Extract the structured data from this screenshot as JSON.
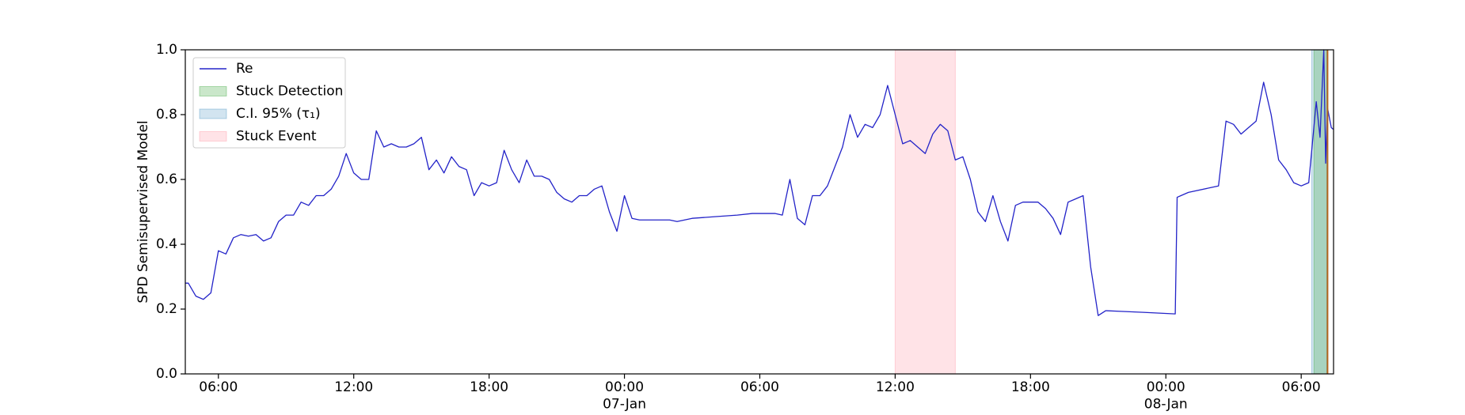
{
  "chart_data": {
    "type": "line",
    "ylabel": "SPD Semisupervised Model",
    "x": [
      "1900-01-06T04:32",
      "1900-01-06T04:40",
      "1900-01-06T05:00",
      "1900-01-06T05:20",
      "1900-01-06T05:40",
      "1900-01-06T06:00",
      "1900-01-06T06:20",
      "1900-01-06T06:40",
      "1900-01-06T07:00",
      "1900-01-06T07:20",
      "1900-01-06T07:40",
      "1900-01-06T08:00",
      "1900-01-06T08:20",
      "1900-01-06T08:40",
      "1900-01-06T09:00",
      "1900-01-06T09:20",
      "1900-01-06T09:40",
      "1900-01-06T10:00",
      "1900-01-06T10:20",
      "1900-01-06T10:40",
      "1900-01-06T11:00",
      "1900-01-06T11:20",
      "1900-01-06T11:40",
      "1900-01-06T12:00",
      "1900-01-06T12:20",
      "1900-01-06T12:40",
      "1900-01-06T13:00",
      "1900-01-06T13:20",
      "1900-01-06T13:40",
      "1900-01-06T14:00",
      "1900-01-06T14:20",
      "1900-01-06T14:40",
      "1900-01-06T15:00",
      "1900-01-06T15:20",
      "1900-01-06T15:40",
      "1900-01-06T16:00",
      "1900-01-06T16:20",
      "1900-01-06T16:40",
      "1900-01-06T17:00",
      "1900-01-06T17:20",
      "1900-01-06T17:40",
      "1900-01-06T18:00",
      "1900-01-06T18:20",
      "1900-01-06T18:40",
      "1900-01-06T19:00",
      "1900-01-06T19:20",
      "1900-01-06T19:40",
      "1900-01-06T20:00",
      "1900-01-06T20:20",
      "1900-01-06T20:40",
      "1900-01-06T21:00",
      "1900-01-06T21:20",
      "1900-01-06T21:40",
      "1900-01-06T22:00",
      "1900-01-06T22:20",
      "1900-01-06T22:40",
      "1900-01-06T23:00",
      "1900-01-06T23:20",
      "1900-01-06T23:40",
      "1900-01-07T00:00",
      "1900-01-07T00:20",
      "1900-01-07T00:40",
      "1900-01-07T01:00",
      "1900-01-07T02:00",
      "1900-01-07T02:20",
      "1900-01-07T03:00",
      "1900-01-07T04:00",
      "1900-01-07T05:00",
      "1900-01-07T05:40",
      "1900-01-07T06:40",
      "1900-01-07T07:00",
      "1900-01-07T07:20",
      "1900-01-07T07:40",
      "1900-01-07T08:00",
      "1900-01-07T08:20",
      "1900-01-07T08:40",
      "1900-01-07T09:00",
      "1900-01-07T09:20",
      "1900-01-07T09:40",
      "1900-01-07T10:00",
      "1900-01-07T10:20",
      "1900-01-07T10:40",
      "1900-01-07T11:00",
      "1900-01-07T11:20",
      "1900-01-07T11:40",
      "1900-01-07T12:00",
      "1900-01-07T12:20",
      "1900-01-07T12:40",
      "1900-01-07T13:00",
      "1900-01-07T13:20",
      "1900-01-07T13:40",
      "1900-01-07T14:00",
      "1900-01-07T14:20",
      "1900-01-07T14:40",
      "1900-01-07T15:00",
      "1900-01-07T15:20",
      "1900-01-07T15:40",
      "1900-01-07T16:00",
      "1900-01-07T16:20",
      "1900-01-07T16:40",
      "1900-01-07T17:00",
      "1900-01-07T17:20",
      "1900-01-07T17:40",
      "1900-01-07T18:00",
      "1900-01-07T18:20",
      "1900-01-07T18:40",
      "1900-01-07T19:00",
      "1900-01-07T19:20",
      "1900-01-07T19:40",
      "1900-01-07T20:00",
      "1900-01-07T20:20",
      "1900-01-07T20:40",
      "1900-01-07T21:00",
      "1900-01-07T21:20",
      "1900-01-07T22:00",
      "1900-01-07T23:00",
      "1900-01-08T00:25",
      "1900-01-08T00:30",
      "1900-01-08T00:40",
      "1900-01-08T01:00",
      "1900-01-08T02:00",
      "1900-01-08T02:20",
      "1900-01-08T02:40",
      "1900-01-08T03:00",
      "1900-01-08T03:20",
      "1900-01-08T03:40",
      "1900-01-08T04:00",
      "1900-01-08T04:20",
      "1900-01-08T04:40",
      "1900-01-08T05:00",
      "1900-01-08T05:20",
      "1900-01-08T05:40",
      "1900-01-08T06:00",
      "1900-01-08T06:20",
      "1900-01-08T06:40",
      "1900-01-08T06:50",
      "1900-01-08T07:00",
      "1900-01-08T07:05",
      "1900-01-08T07:10",
      "1900-01-08T07:20",
      "1900-01-08T07:25"
    ],
    "series": [
      {
        "name": "Re",
        "color": "#2323c8",
        "values": [
          0.28,
          0.28,
          0.24,
          0.23,
          0.25,
          0.38,
          0.37,
          0.42,
          0.43,
          0.425,
          0.43,
          0.41,
          0.42,
          0.47,
          0.49,
          0.49,
          0.53,
          0.52,
          0.55,
          0.55,
          0.57,
          0.61,
          0.68,
          0.62,
          0.6,
          0.6,
          0.75,
          0.7,
          0.71,
          0.7,
          0.7,
          0.71,
          0.73,
          0.63,
          0.66,
          0.62,
          0.67,
          0.64,
          0.63,
          0.55,
          0.59,
          0.58,
          0.59,
          0.69,
          0.63,
          0.59,
          0.66,
          0.61,
          0.61,
          0.6,
          0.56,
          0.54,
          0.53,
          0.55,
          0.55,
          0.57,
          0.58,
          0.5,
          0.44,
          0.55,
          0.48,
          0.475,
          0.475,
          0.475,
          0.47,
          0.48,
          0.485,
          0.49,
          0.495,
          0.495,
          0.49,
          0.6,
          0.48,
          0.46,
          0.55,
          0.55,
          0.58,
          0.64,
          0.7,
          0.8,
          0.73,
          0.77,
          0.76,
          0.8,
          0.89,
          0.8,
          0.71,
          0.72,
          0.7,
          0.68,
          0.74,
          0.77,
          0.75,
          0.66,
          0.67,
          0.6,
          0.5,
          0.47,
          0.55,
          0.47,
          0.41,
          0.52,
          0.53,
          0.53,
          0.53,
          0.51,
          0.48,
          0.43,
          0.53,
          0.54,
          0.55,
          0.33,
          0.18,
          0.195,
          0.193,
          0.19,
          0.185,
          0.545,
          0.55,
          0.56,
          0.575,
          0.58,
          0.78,
          0.77,
          0.74,
          0.76,
          0.78,
          0.9,
          0.8,
          0.66,
          0.63,
          0.59,
          0.58,
          0.59,
          0.84,
          0.73,
          1,
          0.65,
          0.82,
          0.76,
          0.755
        ]
      }
    ],
    "spans": [
      {
        "name": "Stuck Detection",
        "color": "#2ca02c",
        "alpha": 0.25,
        "start": "1900-01-08T06:34",
        "end": "1900-01-08T07:10"
      },
      {
        "name": "C.I. 95% (τ₁)",
        "color": "#1f77b4",
        "alpha": 0.2,
        "start": "1900-01-08T06:28",
        "end": "1900-01-08T07:08"
      },
      {
        "name": "Stuck Event",
        "color": "#ff8090",
        "alpha": 0.22,
        "start": "1900-01-07T12:00",
        "end": "1900-01-07T14:40"
      }
    ],
    "vlines": [
      {
        "x": "1900-01-08T07:10",
        "color": "#b5651d"
      }
    ],
    "xlim": [
      "1900-01-06T04:32",
      "1900-01-08T07:26"
    ],
    "xticks": [
      {
        "value": "1900-01-06T06:00",
        "label": "06:00"
      },
      {
        "value": "1900-01-06T12:00",
        "label": "12:00"
      },
      {
        "value": "1900-01-06T18:00",
        "label": "18:00"
      },
      {
        "value": "1900-01-07T00:00",
        "label": "00:00\n07-Jan\n1900"
      },
      {
        "value": "1900-01-07T06:00",
        "label": "06:00"
      },
      {
        "value": "1900-01-07T12:00",
        "label": "12:00"
      },
      {
        "value": "1900-01-07T18:00",
        "label": "18:00"
      },
      {
        "value": "1900-01-08T00:00",
        "label": "00:00\n08-Jan"
      },
      {
        "value": "1900-01-08T06:00",
        "label": "06:00"
      }
    ],
    "ylim": [
      0,
      1
    ],
    "yticks": [
      {
        "value": 0,
        "label": "0.0"
      },
      {
        "value": 0.2,
        "label": "0.2"
      },
      {
        "value": 0.4,
        "label": "0.4"
      },
      {
        "value": 0.6,
        "label": "0.6"
      },
      {
        "value": 0.8,
        "label": "0.8"
      },
      {
        "value": 1,
        "label": "1.0"
      }
    ],
    "legend": "upper left"
  }
}
